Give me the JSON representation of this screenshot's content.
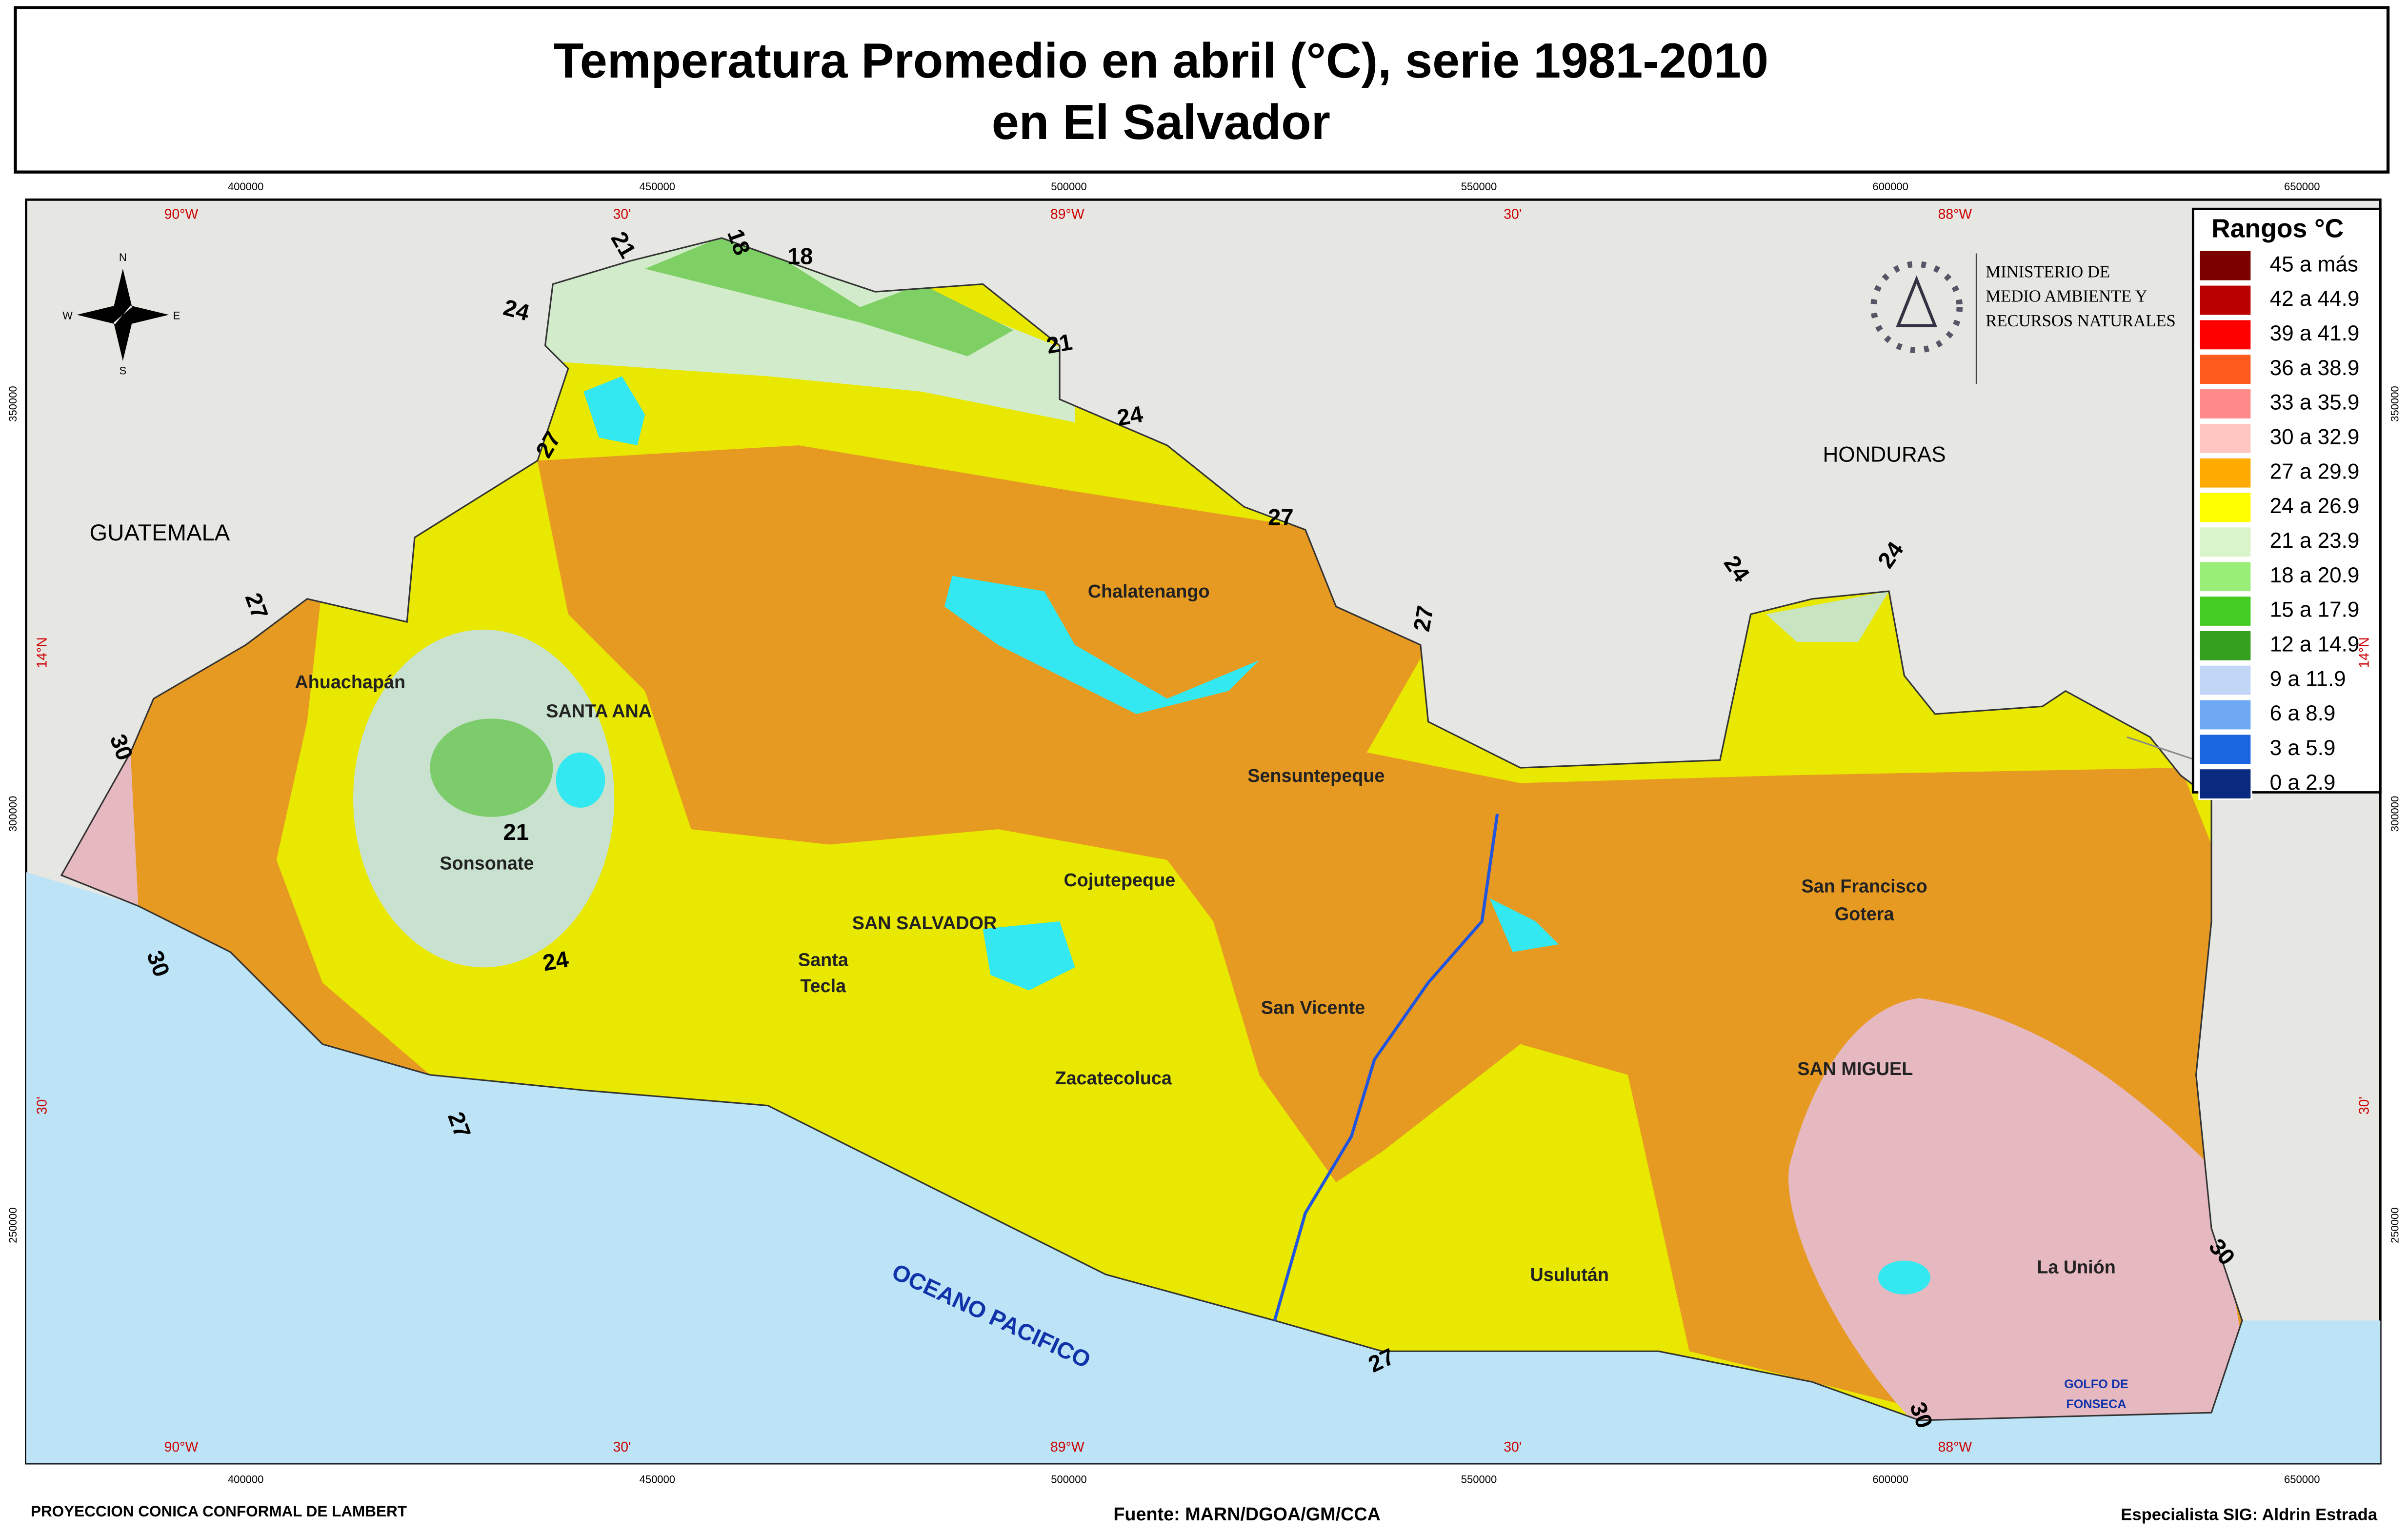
{
  "header": {
    "title": [
      "Temperatura Promedio en abril (°C), serie 1981-2010",
      "en El Salvador"
    ]
  },
  "legend": {
    "title": "Rangos °C",
    "items": [
      {
        "label": "45 a más",
        "color": "#7b0000"
      },
      {
        "label": "42 a 44.9",
        "color": "#bb0000"
      },
      {
        "label": "39 a 41.9",
        "color": "#ff0000"
      },
      {
        "label": "36 a 38.9",
        "color": "#ff5a1e"
      },
      {
        "label": "33 a 35.9",
        "color": "#ff8a8a"
      },
      {
        "label": "30 a 32.9",
        "color": "#ffc6c2"
      },
      {
        "label": "27 a 29.9",
        "color": "#ffaa00"
      },
      {
        "label": "24 a 26.9",
        "color": "#ffff00"
      },
      {
        "label": "21 a 23.9",
        "color": "#d9f4c8"
      },
      {
        "label": "18 a 20.9",
        "color": "#99ee77"
      },
      {
        "label": "15 a 17.9",
        "color": "#44cc22"
      },
      {
        "label": "12 a 14.9",
        "color": "#33a020"
      },
      {
        "label": "9 a 11.9",
        "color": "#c2d6f8"
      },
      {
        "label": "6 a 8.9",
        "color": "#6ea8f0"
      },
      {
        "label": "3 a 5.9",
        "color": "#1a66e0"
      },
      {
        "label": "0 a 2.9",
        "color": "#0a2a80"
      }
    ]
  },
  "ministry": [
    "MINISTERIO DE",
    "MEDIO AMBIENTE Y",
    "RECURSOS NATURALES"
  ],
  "compass": [
    "N",
    "S",
    "E",
    "W"
  ],
  "graticule": {
    "longitudes": [
      "90°W",
      "30'",
      "89°W",
      "30'",
      "88°W"
    ],
    "eastings": [
      "400000",
      "450000",
      "500000",
      "550000",
      "600000",
      "650000"
    ],
    "latitudes": [
      "14°N",
      "30'"
    ],
    "northings": [
      "350000",
      "300000",
      "250000"
    ]
  },
  "regions": [
    "GUATEMALA",
    "HONDURAS",
    "OCEANO PACIFICO",
    "GOLFO DE",
    "FONSECA"
  ],
  "cities": [
    "Ahuachapán",
    "SANTA ANA",
    "Sonsonate",
    "Chalatenango",
    "Sensuntepeque",
    "Cojutepeque",
    "SAN SALVADOR",
    "Santa",
    "Tecla",
    "San Vicente",
    "Zacatecoluca",
    "San Francisco",
    "Gotera",
    "SAN MIGUEL",
    "Usulután",
    "La Unión"
  ],
  "isotherm_labels": [
    "21",
    "18",
    "18",
    "24",
    "21",
    "24",
    "27",
    "27",
    "24",
    "24",
    "27",
    "27",
    "30",
    "21",
    "24",
    "30",
    "27",
    "27",
    "30",
    "30"
  ],
  "footer": {
    "projection": "PROYECCION CONICA CONFORMAL DE LAMBERT",
    "source": "Fuente: MARN/DGOA/GM/CCA",
    "author": "Especialista SIG: Aldrin Estrada"
  }
}
